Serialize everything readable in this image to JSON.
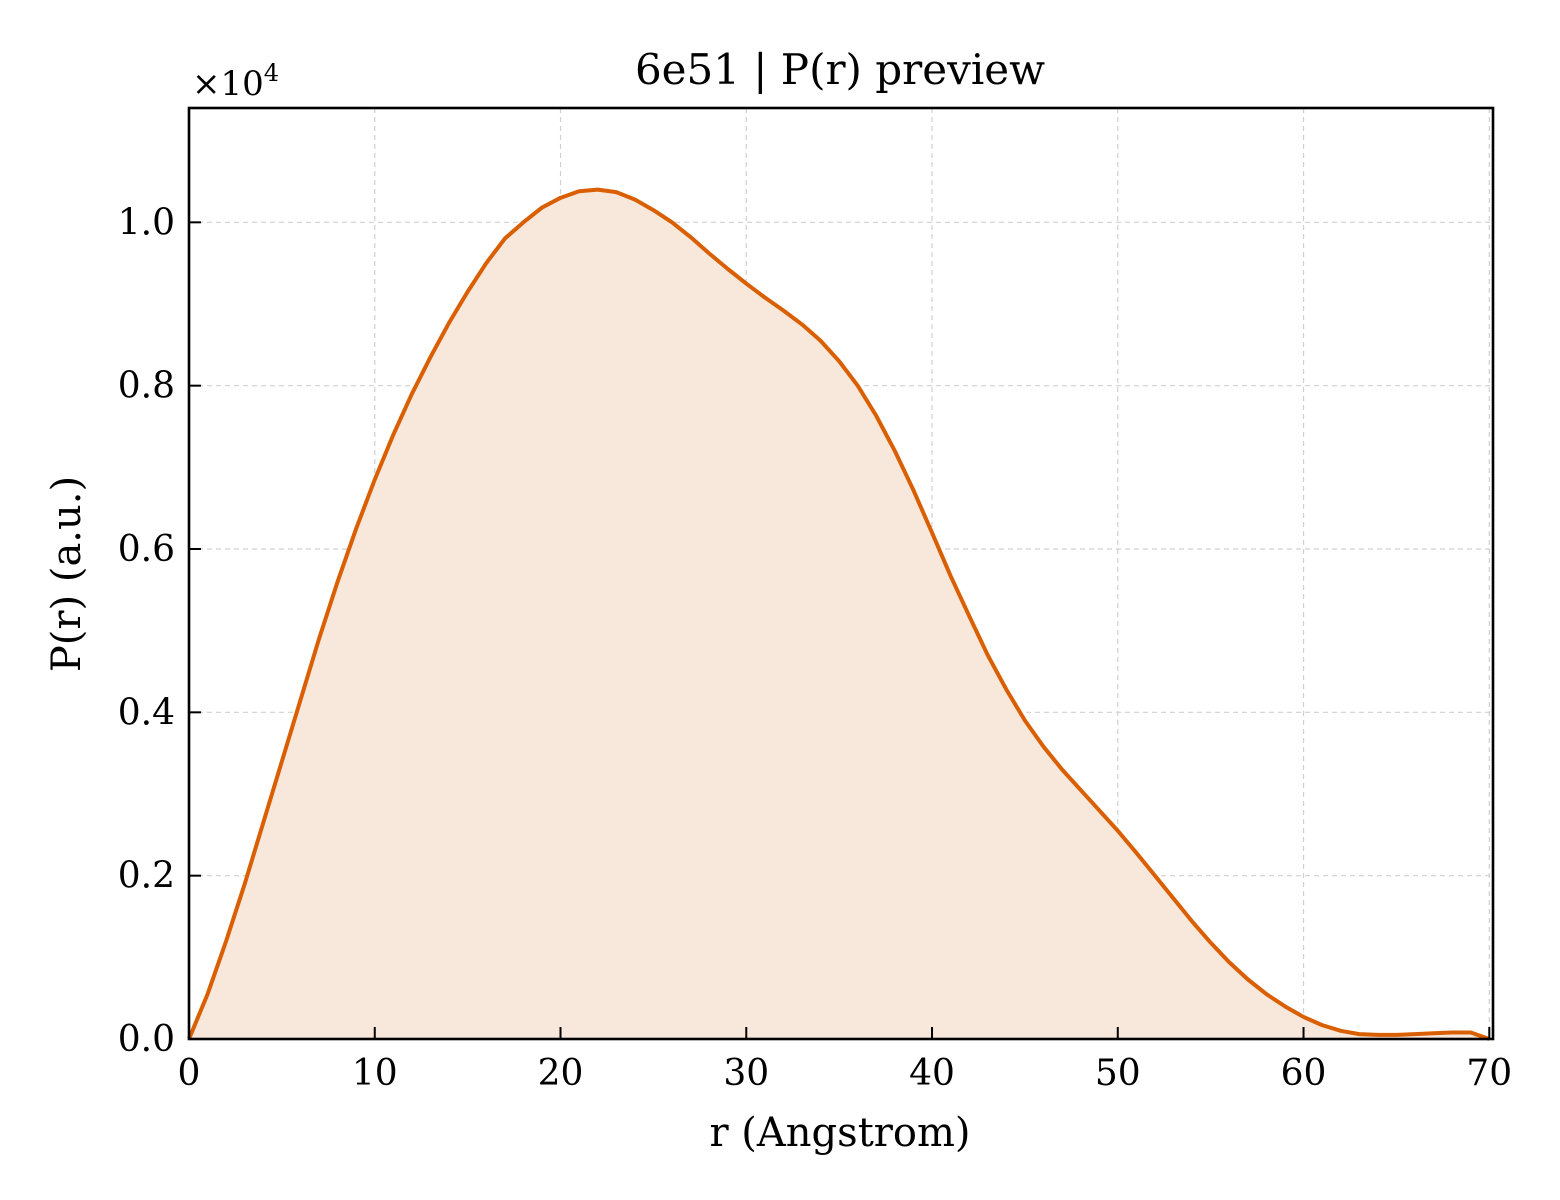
{
  "chart_data": {
    "type": "area",
    "title": "6e51 | P(r) preview",
    "xlabel": "r (Angstrom)",
    "ylabel": "P(r) (a.u.)",
    "y_multiplier": "×10",
    "y_multiplier_exponent": "4",
    "xlim": [
      0,
      70.2
    ],
    "ylim": [
      0,
      1.14
    ],
    "x_ticks": [
      0,
      10,
      20,
      30,
      40,
      50,
      60,
      70
    ],
    "x_tick_labels": [
      "0",
      "10",
      "20",
      "30",
      "40",
      "50",
      "60",
      "70"
    ],
    "y_ticks": [
      0,
      0.2,
      0.4,
      0.6,
      0.8,
      1.0
    ],
    "y_tick_labels": [
      "0.0",
      "0.2",
      "0.4",
      "0.6",
      "0.8",
      "1.0"
    ],
    "grid": true,
    "series": [
      {
        "color": "#d95f02",
        "fill_color": "#f8e8dc",
        "x": [
          0,
          1,
          2,
          3,
          4,
          5,
          6,
          7,
          8,
          9,
          10,
          11,
          12,
          13,
          14,
          15,
          16,
          17,
          18,
          19,
          20,
          21,
          22,
          23,
          24,
          25,
          26,
          27,
          28,
          29,
          30,
          31,
          32,
          33,
          34,
          35,
          36,
          37,
          38,
          39,
          40,
          41,
          42,
          43,
          44,
          45,
          46,
          47,
          48,
          49,
          50,
          51,
          52,
          53,
          54,
          55,
          56,
          57,
          58,
          59,
          60,
          61,
          62,
          63,
          64,
          65,
          66,
          67,
          68,
          69,
          70
        ],
        "y": [
          0,
          0.055,
          0.12,
          0.19,
          0.265,
          0.34,
          0.415,
          0.49,
          0.56,
          0.625,
          0.685,
          0.74,
          0.79,
          0.835,
          0.877,
          0.915,
          0.95,
          0.98,
          1.0,
          1.018,
          1.03,
          1.038,
          1.04,
          1.037,
          1.028,
          1.015,
          1.0,
          0.982,
          0.962,
          0.943,
          0.925,
          0.908,
          0.892,
          0.875,
          0.855,
          0.83,
          0.8,
          0.763,
          0.72,
          0.672,
          0.62,
          0.567,
          0.518,
          0.47,
          0.428,
          0.39,
          0.358,
          0.33,
          0.305,
          0.28,
          0.255,
          0.228,
          0.2,
          0.172,
          0.144,
          0.118,
          0.094,
          0.073,
          0.055,
          0.04,
          0.027,
          0.017,
          0.01,
          0.006,
          0.005,
          0.005,
          0.006,
          0.007,
          0.008,
          0.008,
          0.0
        ]
      }
    ]
  }
}
